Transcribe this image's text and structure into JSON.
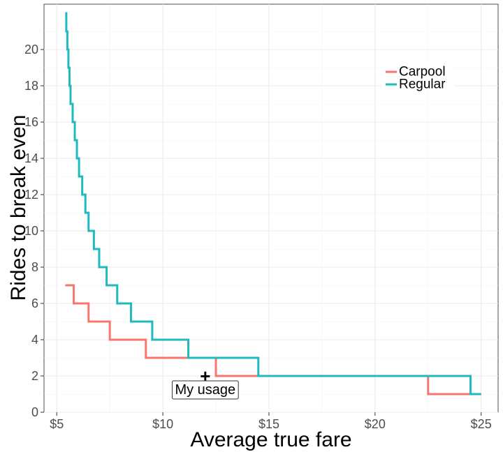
{
  "chart_data": {
    "type": "line",
    "title": "",
    "xlabel": "Average true fare",
    "ylabel": "Rides to break even",
    "xlim": [
      4.4,
      25.8
    ],
    "ylim": [
      0,
      22.5
    ],
    "x_ticks": [
      5,
      10,
      15,
      20,
      25
    ],
    "x_tick_labels": [
      "$5",
      "$10",
      "$15",
      "$20",
      "$25"
    ],
    "y_ticks": [
      0,
      2,
      4,
      6,
      8,
      10,
      12,
      14,
      16,
      18,
      20
    ],
    "y_tick_labels": [
      "0",
      "2",
      "4",
      "6",
      "8",
      "10",
      "12",
      "14",
      "16",
      "18",
      "20"
    ],
    "grid": true,
    "legend_position": "top-right",
    "series": [
      {
        "name": "Carpool",
        "color": "#f8766d",
        "step": "vh",
        "points": [
          [
            5.4,
            7
          ],
          [
            5.8,
            6
          ],
          [
            6.5,
            5
          ],
          [
            7.5,
            4
          ],
          [
            9.2,
            3
          ],
          [
            12.5,
            2
          ],
          [
            22.5,
            1
          ],
          [
            25.0,
            1
          ]
        ]
      },
      {
        "name": "Regular",
        "color": "#1fbabf",
        "step": "vh",
        "points": [
          [
            5.4,
            22
          ],
          [
            5.45,
            21
          ],
          [
            5.5,
            20
          ],
          [
            5.55,
            19
          ],
          [
            5.6,
            18
          ],
          [
            5.65,
            17
          ],
          [
            5.75,
            16
          ],
          [
            5.85,
            15
          ],
          [
            5.95,
            14
          ],
          [
            6.05,
            13
          ],
          [
            6.2,
            12
          ],
          [
            6.35,
            11
          ],
          [
            6.5,
            10
          ],
          [
            6.75,
            9
          ],
          [
            7.0,
            8
          ],
          [
            7.35,
            7
          ],
          [
            7.85,
            6
          ],
          [
            8.5,
            5
          ],
          [
            9.5,
            4
          ],
          [
            11.2,
            3
          ],
          [
            14.5,
            2
          ],
          [
            24.5,
            1
          ],
          [
            25.0,
            1
          ]
        ]
      }
    ],
    "annotation": {
      "label": "My usage",
      "marker": "+",
      "x": 12.0,
      "y": 2
    }
  }
}
